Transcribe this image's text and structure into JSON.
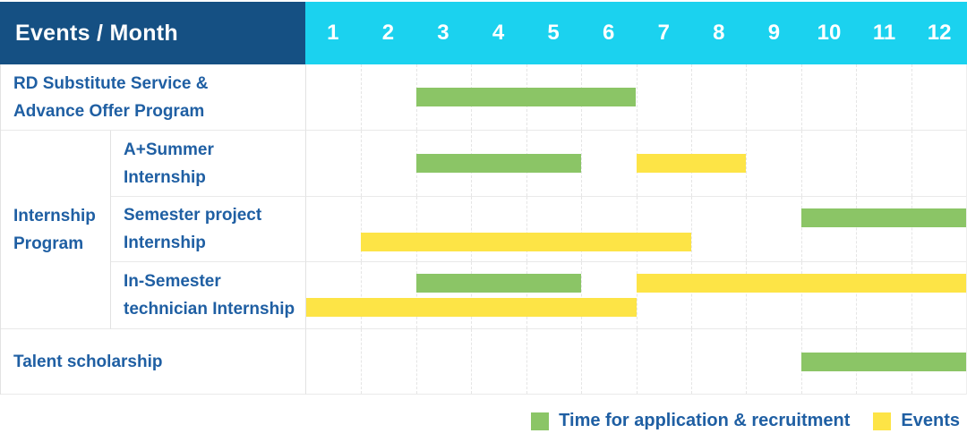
{
  "header": {
    "label": "Events / Month",
    "months": [
      "1",
      "2",
      "3",
      "4",
      "5",
      "6",
      "7",
      "8",
      "9",
      "10",
      "11",
      "12"
    ]
  },
  "group": {
    "label": "Internship Program",
    "label_lines": [
      "Internship",
      "Program"
    ],
    "row_start": 2,
    "row_end": 4
  },
  "rows": [
    {
      "id": "rd-substitute",
      "label": "RD Substitute Service & Advance Offer Program",
      "label_lines": [
        "RD Substitute Service &",
        "Advance Offer Program"
      ],
      "label_span": "full",
      "bars": [
        {
          "color": "green",
          "start": 3,
          "end": 6,
          "band": "mid"
        }
      ]
    },
    {
      "id": "a-summer-internship",
      "label": "A+Summer Internship",
      "label_lines": [
        "A+Summer",
        "Internship"
      ],
      "label_span": "sub",
      "bars": [
        {
          "color": "green",
          "start": 3,
          "end": 5,
          "band": "mid"
        },
        {
          "color": "yellow",
          "start": 7,
          "end": 8,
          "band": "mid"
        }
      ]
    },
    {
      "id": "semester-project-internship",
      "label": "Semester project Internship",
      "label_lines": [
        "Semester project",
        "Internship"
      ],
      "label_span": "sub",
      "bars": [
        {
          "color": "green",
          "start": 10,
          "end": 12,
          "band": "top"
        },
        {
          "color": "yellow",
          "start": 2,
          "end": 7,
          "band": "bottom"
        }
      ]
    },
    {
      "id": "in-semester-technician-internship",
      "label": "In-Semester technician Internship",
      "label_lines": [
        "In-Semester",
        "technician Internship"
      ],
      "label_span": "sub",
      "bars": [
        {
          "color": "green",
          "start": 3,
          "end": 5,
          "band": "top"
        },
        {
          "color": "yellow",
          "start": 7,
          "end": 12,
          "band": "top"
        },
        {
          "color": "yellow",
          "start": 1,
          "end": 6,
          "band": "bottom"
        }
      ]
    },
    {
      "id": "talent-scholarship",
      "label": "Talent scholarship",
      "label_lines": [
        "Talent scholarship"
      ],
      "label_span": "full",
      "bars": [
        {
          "color": "green",
          "start": 10,
          "end": 12,
          "band": "mid"
        }
      ]
    }
  ],
  "legend": {
    "items": [
      {
        "key": "green",
        "label": "Time for application & recruitment"
      },
      {
        "key": "yellow",
        "label": "Events"
      }
    ]
  },
  "colors": {
    "header_bg": "#155083",
    "months_bg": "#1BD2EF",
    "green": "#8BC566",
    "yellow": "#FDE446",
    "label_text": "#1F5FA3",
    "grid_line": "#E5E5E5"
  },
  "chart_data": {
    "type": "bar",
    "subtype": "gantt",
    "title": "Events / Month",
    "xlabel": "Month",
    "x_ticks": [
      "1",
      "2",
      "3",
      "4",
      "5",
      "6",
      "7",
      "8",
      "9",
      "10",
      "11",
      "12"
    ],
    "x_range": [
      1,
      12
    ],
    "grid": true,
    "legend": [
      "Time for application & recruitment",
      "Events"
    ],
    "legend_position": "bottom-right",
    "rows": [
      {
        "label": "RD Substitute Service & Advance Offer Program",
        "group": null,
        "segments": [
          {
            "series": "Time for application & recruitment",
            "start_month": 3,
            "end_month": 6
          }
        ]
      },
      {
        "label": "A+Summer Internship",
        "group": "Internship Program",
        "segments": [
          {
            "series": "Time for application & recruitment",
            "start_month": 3,
            "end_month": 5
          },
          {
            "series": "Events",
            "start_month": 7,
            "end_month": 8
          }
        ]
      },
      {
        "label": "Semester project Internship",
        "group": "Internship Program",
        "segments": [
          {
            "series": "Time for application & recruitment",
            "start_month": 10,
            "end_month": 12
          },
          {
            "series": "Events",
            "start_month": 2,
            "end_month": 7
          }
        ]
      },
      {
        "label": "In-Semester technician Internship",
        "group": "Internship Program",
        "segments": [
          {
            "series": "Time for application & recruitment",
            "start_month": 3,
            "end_month": 5
          },
          {
            "series": "Events",
            "start_month": 7,
            "end_month": 12
          },
          {
            "series": "Events",
            "start_month": 1,
            "end_month": 6
          }
        ]
      },
      {
        "label": "Talent scholarship",
        "group": null,
        "segments": [
          {
            "series": "Time for application & recruitment",
            "start_month": 10,
            "end_month": 12
          }
        ]
      }
    ]
  }
}
